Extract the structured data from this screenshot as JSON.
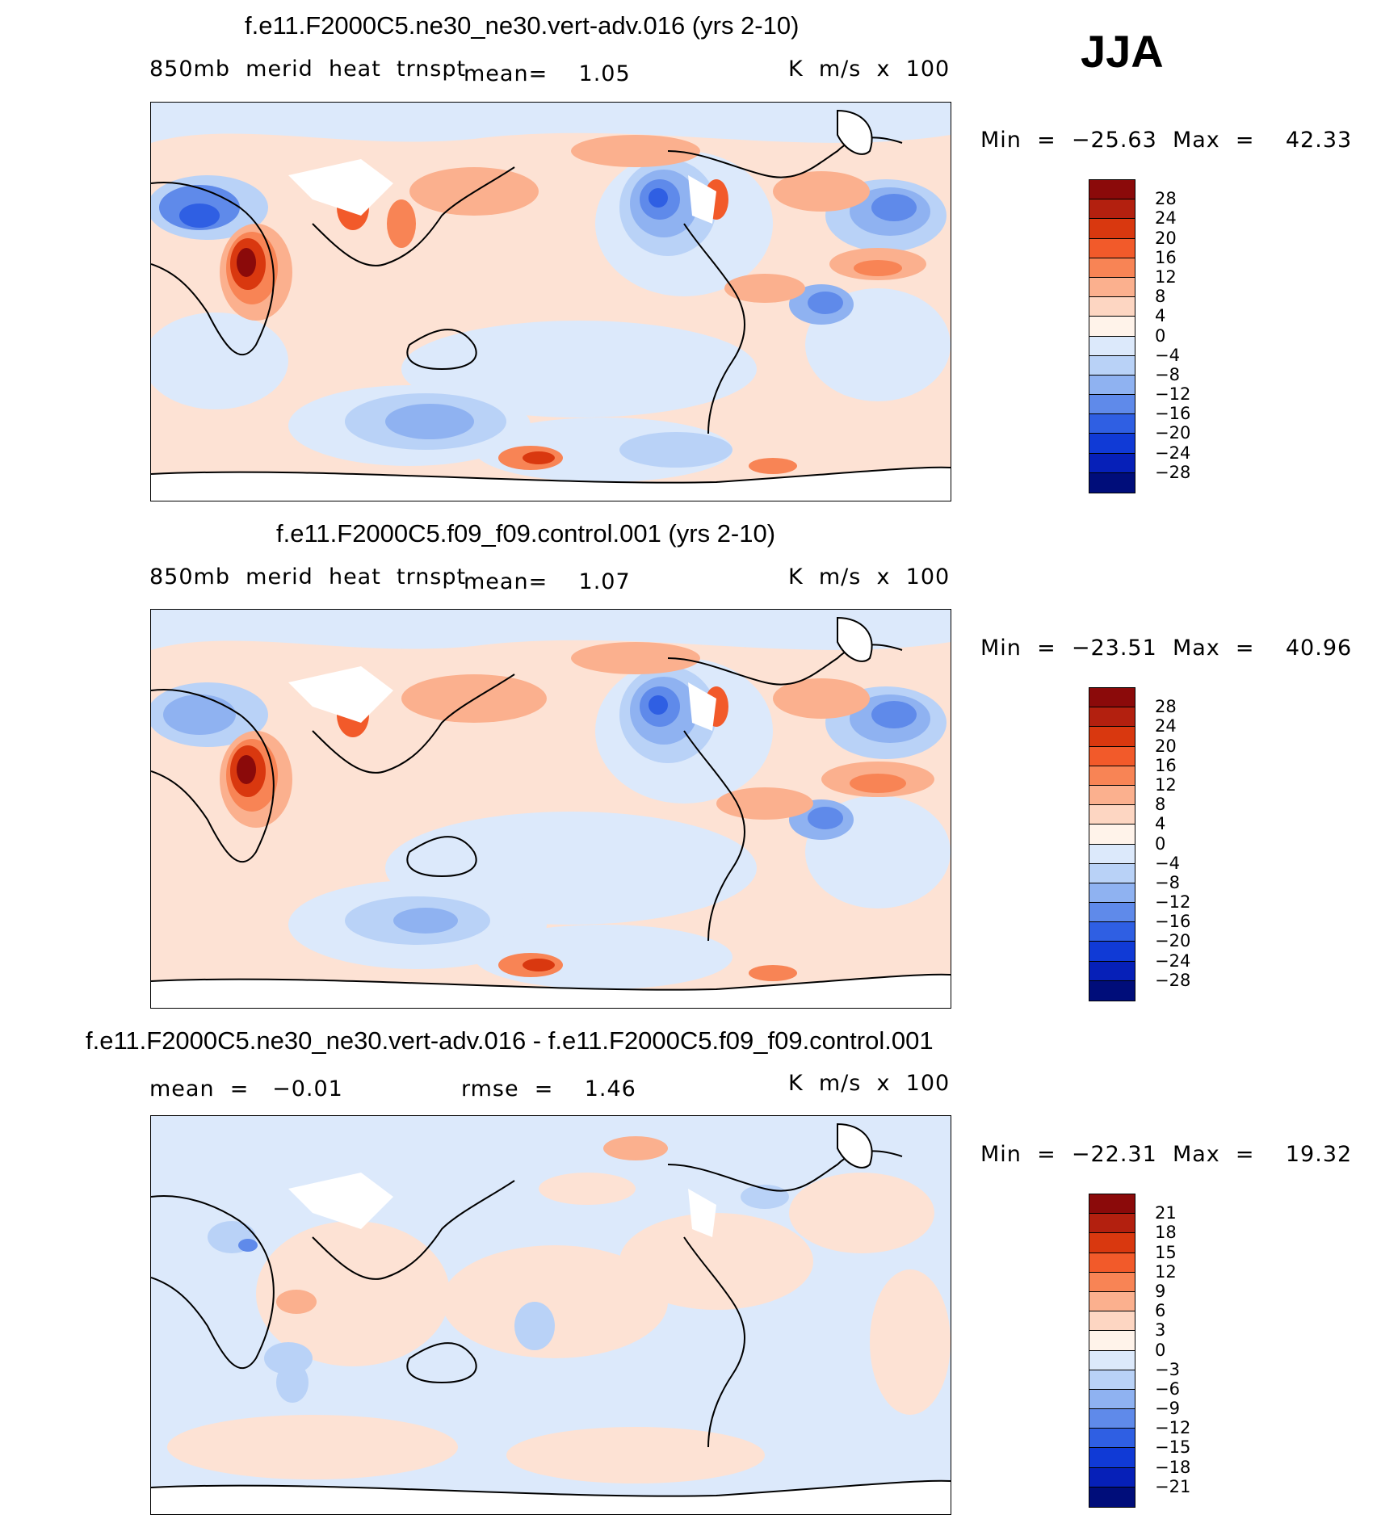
{
  "season": "JJA",
  "panels": [
    {
      "title": "f.e11.F2000C5.ne30_ne30.vert-adv.016 (yrs 2-10)",
      "left_label": "850mb  merid  heat  trnspt",
      "center_label": "mean=    1.05",
      "right_label": "K  m/s  x  100",
      "minmax": "Min  =  −25.63  Max  =    42.33",
      "colorbar_ticks": [
        "28",
        "24",
        "20",
        "16",
        "12",
        "8",
        "4",
        "0",
        "−4",
        "−8",
        "−12",
        "−16",
        "−20",
        "−24",
        "−28"
      ]
    },
    {
      "title": "f.e11.F2000C5.f09_f09.control.001 (yrs 2-10)",
      "left_label": "850mb  merid  heat  trnspt",
      "center_label": "mean=    1.07",
      "right_label": "K  m/s  x  100",
      "minmax": "Min  =  −23.51  Max  =    40.96",
      "colorbar_ticks": [
        "28",
        "24",
        "20",
        "16",
        "12",
        "8",
        "4",
        "0",
        "−4",
        "−8",
        "−12",
        "−16",
        "−20",
        "−24",
        "−28"
      ]
    },
    {
      "title": "f.e11.F2000C5.ne30_ne30.vert-adv.016 - f.e11.F2000C5.f09_f09.control.001",
      "left_label": "mean  =   −0.01",
      "center_label": "rmse  =    1.46",
      "right_label": "K  m/s  x  100",
      "minmax": "Min  =  −22.31  Max  =    19.32",
      "colorbar_ticks": [
        "21",
        "18",
        "15",
        "12",
        "9",
        "6",
        "3",
        "0",
        "−3",
        "−6",
        "−9",
        "−12",
        "−15",
        "−18",
        "−21"
      ]
    }
  ],
  "colors": {
    "palette": [
      "#8b0a0a",
      "#b3200f",
      "#d9380f",
      "#f25a2a",
      "#f88455",
      "#fbb08e",
      "#fdd6c2",
      "#fff3ea",
      "#dce9fb",
      "#b9d2f7",
      "#8fb2f1",
      "#5f8aea",
      "#2f5fe3",
      "#103ad6",
      "#0620b8",
      "#000d7a"
    ],
    "ocean_light_warm": "#fde2d4",
    "ocean_light_cool": "#dce9fb"
  }
}
